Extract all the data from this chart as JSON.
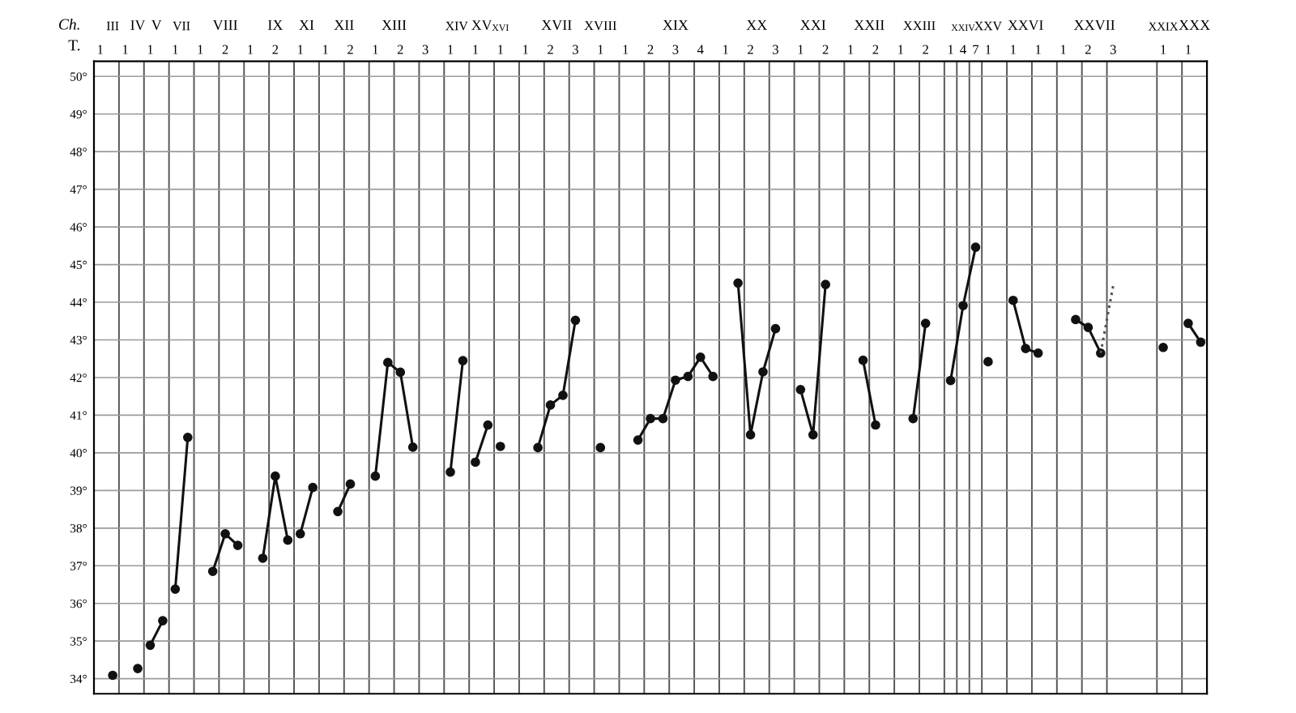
{
  "chart_data": {
    "type": "line",
    "xlabel": "T.",
    "annotations": [
      "Ch.",
      "III",
      "IV",
      "V",
      "VII",
      "VIII",
      "IX",
      "XI",
      "XII",
      "XIII",
      "XIV",
      "XV",
      "XVI",
      "XVII",
      "XVIII",
      "XIX",
      "XX",
      "XXI",
      "XXII",
      "XXIII",
      "XXIV",
      "XXV",
      "XXVI",
      "XXVII",
      "XXIX",
      "XXX"
    ],
    "marker": "circle",
    "grid": true,
    "categories": [
      "1",
      null,
      "1",
      null,
      "1",
      null,
      "1",
      null,
      "1",
      null,
      "2",
      null,
      "1",
      null,
      "2",
      null,
      "1",
      null,
      "1",
      null,
      "2",
      null,
      "1",
      null,
      "2",
      null,
      "3",
      null,
      "1",
      null,
      "1",
      null,
      "1",
      null,
      "1",
      null,
      "2",
      null,
      "3",
      null,
      "1",
      null,
      "1",
      null,
      "2",
      null,
      "3",
      null,
      "4",
      null,
      "1",
      null,
      "2",
      null,
      "3",
      null,
      "1",
      null,
      "2",
      null,
      "1",
      null,
      "2",
      null,
      "1",
      null,
      "2",
      null,
      "1",
      "4",
      "7",
      "1",
      null,
      "1",
      null,
      "1",
      null,
      "1",
      null,
      "2",
      null,
      "3",
      null,
      null,
      null,
      "1",
      null,
      "1",
      null
    ],
    "ylim": [
      33.6,
      50.4
    ],
    "yticks": [
      {
        "value": 34,
        "label": "34°"
      },
      {
        "value": 35,
        "label": "35°"
      },
      {
        "value": 36,
        "label": "36°"
      },
      {
        "value": 37,
        "label": "37°"
      },
      {
        "value": 38,
        "label": "38°"
      },
      {
        "value": 39,
        "label": "39°"
      },
      {
        "value": 40,
        "label": "40°"
      },
      {
        "value": 41,
        "label": "41°"
      },
      {
        "value": 42,
        "label": "42°"
      },
      {
        "value": 43,
        "label": "43°"
      },
      {
        "value": 44,
        "label": "44°"
      },
      {
        "value": 45,
        "label": "45°"
      },
      {
        "value": 46,
        "label": "46°"
      },
      {
        "value": 47,
        "label": "47°"
      },
      {
        "value": 48,
        "label": "48°"
      },
      {
        "value": 49,
        "label": "49°"
      },
      {
        "value": 50,
        "label": "50°"
      }
    ],
    "series": [
      {
        "color": "#111111",
        "values": [
          null,
          34.09,
          null,
          null,
          34.89,
          35.54,
          null,
          null,
          null,
          36.85,
          37.85,
          37.54,
          null,
          null,
          null,
          null,
          37.85,
          39.08,
          null,
          null,
          null,
          null,
          39.38,
          42.4,
          42.14,
          40.15,
          null,
          null,
          null,
          null,
          39.75,
          40.74,
          null,
          null,
          null,
          40.14,
          41.27,
          41.53,
          43.52,
          null,
          null,
          null,
          null,
          40.34,
          40.91,
          40.91,
          41.93,
          42.03,
          42.54,
          42.03,
          null,
          null,
          null,
          null,
          null,
          null,
          41.68,
          40.48,
          44.47,
          null,
          null,
          null,
          null,
          null,
          null,
          40.91,
          43.44,
          null,
          null,
          null,
          null,
          42.42,
          null,
          null,
          null,
          null,
          null,
          null,
          43.54,
          43.33,
          42.65,
          null,
          null,
          null,
          null,
          null,
          null,
          43.44,
          42.94
        ]
      },
      {
        "color": "#111111",
        "values": [
          null,
          null,
          null,
          34.27,
          null,
          null,
          36.38,
          40.41,
          null,
          null,
          null,
          null,
          null,
          37.2,
          39.38,
          37.68,
          null,
          null,
          null,
          38.44,
          39.17,
          null,
          null,
          null,
          null,
          null,
          null,
          null,
          39.49,
          42.45,
          null,
          null,
          40.17,
          null,
          null,
          null,
          null,
          null,
          null,
          null,
          40.14,
          null,
          null,
          null,
          null,
          null,
          null,
          null,
          null,
          null,
          null,
          44.51,
          40.48,
          42.15,
          43.3,
          null,
          null,
          null,
          null,
          null,
          null,
          42.46,
          40.74,
          null,
          null,
          null,
          null,
          null,
          41.92,
          43.91,
          45.46,
          null,
          null,
          44.05,
          42.77,
          42.65,
          null,
          null,
          null,
          null,
          null,
          null,
          null,
          null,
          null,
          42.8,
          null,
          null,
          null
        ]
      },
      {
        "color": "#555555",
        "line_style": "dotted",
        "marker": "none",
        "values": [
          null,
          null,
          null,
          null,
          null,
          null,
          null,
          null,
          null,
          null,
          null,
          null,
          null,
          null,
          null,
          null,
          null,
          null,
          null,
          null,
          null,
          null,
          null,
          null,
          null,
          null,
          null,
          null,
          null,
          null,
          null,
          null,
          null,
          null,
          null,
          null,
          null,
          null,
          null,
          null,
          null,
          null,
          null,
          null,
          null,
          null,
          null,
          null,
          null,
          null,
          null,
          null,
          null,
          null,
          null,
          null,
          null,
          null,
          null,
          null,
          null,
          null,
          null,
          null,
          null,
          null,
          null,
          null,
          null,
          null,
          null,
          null,
          null,
          null,
          null,
          null,
          null,
          null,
          null,
          null,
          42.65,
          44.44,
          null,
          null,
          null,
          null,
          null,
          null,
          null
        ]
      }
    ]
  }
}
